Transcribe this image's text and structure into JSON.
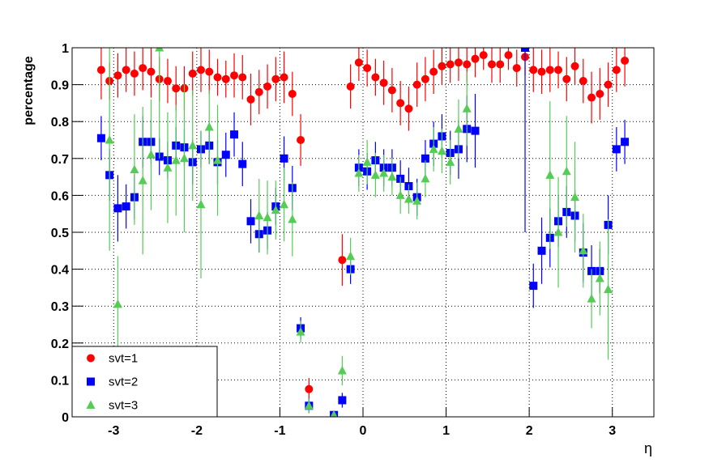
{
  "chart_data": {
    "type": "scatter",
    "x_label": "η",
    "y_label": "percentage",
    "xlim": [
      -3.5,
      3.5
    ],
    "ylim": [
      0,
      1
    ],
    "xticks": [
      -3,
      -2,
      -1,
      0,
      1,
      2,
      3
    ],
    "yticks": [
      0,
      0.1,
      0.2,
      0.3,
      0.4,
      0.5,
      0.6,
      0.7,
      0.8,
      0.9,
      1
    ],
    "grid": true,
    "legend": "lower left",
    "series": [
      {
        "name": "svt=1",
        "color": "#ff0000",
        "marker": "circle",
        "x": [
          -3.15,
          -3.05,
          -2.95,
          -2.85,
          -2.75,
          -2.65,
          -2.55,
          -2.45,
          -2.35,
          -2.25,
          -2.15,
          -2.05,
          -1.95,
          -1.85,
          -1.75,
          -1.65,
          -1.55,
          -1.45,
          -1.35,
          -1.25,
          -1.15,
          -1.05,
          -0.95,
          -0.85,
          -0.75,
          -0.65,
          -0.25,
          -0.15,
          -0.05,
          0.05,
          0.15,
          0.25,
          0.35,
          0.45,
          0.55,
          0.65,
          0.75,
          0.85,
          0.95,
          1.05,
          1.15,
          1.25,
          1.35,
          1.45,
          1.55,
          1.65,
          1.75,
          1.85,
          1.95,
          2.05,
          2.15,
          2.25,
          2.35,
          2.45,
          2.55,
          2.65,
          2.75,
          2.85,
          2.95,
          3.05,
          3.15
        ],
        "values": [
          0.94,
          0.91,
          0.925,
          0.94,
          0.93,
          0.945,
          0.935,
          0.915,
          0.91,
          0.89,
          0.89,
          0.93,
          0.94,
          0.935,
          0.92,
          0.915,
          0.925,
          0.92,
          0.86,
          0.88,
          0.895,
          0.915,
          0.92,
          0.875,
          0.75,
          0.075,
          0.425,
          0.895,
          0.96,
          0.945,
          0.92,
          0.905,
          0.885,
          0.85,
          0.835,
          0.9,
          0.915,
          0.935,
          0.95,
          0.955,
          0.96,
          0.955,
          0.97,
          0.98,
          0.955,
          0.955,
          0.98,
          0.945,
          0.975,
          0.94,
          0.935,
          0.94,
          0.94,
          0.915,
          0.95,
          0.91,
          0.865,
          0.875,
          0.9,
          0.94,
          0.965
        ],
        "errors": [
          0.08,
          0.05,
          0.06,
          0.06,
          0.06,
          0.06,
          0.07,
          0.06,
          0.06,
          0.06,
          0.06,
          0.06,
          0.06,
          0.06,
          0.05,
          0.05,
          0.06,
          0.06,
          0.07,
          0.06,
          0.06,
          0.06,
          0.07,
          0.06,
          0.07,
          0.03,
          0.07,
          0.06,
          0.05,
          0.05,
          0.05,
          0.06,
          0.06,
          0.06,
          0.06,
          0.06,
          0.06,
          0.06,
          0.05,
          0.05,
          0.05,
          0.05,
          0.05,
          0.04,
          0.05,
          0.05,
          0.04,
          0.05,
          0.05,
          0.06,
          0.06,
          0.06,
          0.05,
          0.06,
          0.05,
          0.06,
          0.07,
          0.07,
          0.06,
          0.06,
          0.07
        ]
      },
      {
        "name": "svt=2",
        "color": "#0000ff",
        "marker": "square",
        "x": [
          -3.15,
          -3.05,
          -2.95,
          -2.85,
          -2.75,
          -2.65,
          -2.55,
          -2.45,
          -2.35,
          -2.25,
          -2.15,
          -2.05,
          -1.95,
          -1.85,
          -1.75,
          -1.65,
          -1.55,
          -1.45,
          -1.35,
          -1.25,
          -1.15,
          -1.05,
          -0.95,
          -0.85,
          -0.75,
          -0.65,
          -0.35,
          -0.25,
          -0.15,
          -0.05,
          0.05,
          0.15,
          0.25,
          0.35,
          0.45,
          0.55,
          0.65,
          0.75,
          0.85,
          0.95,
          1.05,
          1.15,
          1.25,
          1.35,
          1.95,
          2.05,
          2.15,
          2.25,
          2.35,
          2.45,
          2.55,
          2.65,
          2.75,
          2.85,
          2.95,
          3.05,
          3.15
        ],
        "values": [
          0.755,
          0.655,
          0.565,
          0.57,
          0.595,
          0.745,
          0.745,
          0.705,
          0.695,
          0.735,
          0.73,
          0.69,
          0.725,
          0.735,
          0.69,
          0.71,
          0.765,
          0.685,
          0.53,
          0.495,
          0.505,
          0.57,
          0.7,
          0.62,
          0.24,
          0.03,
          0.005,
          0.045,
          0.4,
          0.675,
          0.665,
          0.695,
          0.675,
          0.675,
          0.645,
          0.625,
          0.595,
          0.7,
          0.74,
          0.76,
          0.715,
          0.725,
          0.78,
          0.775,
          1.0,
          0.355,
          0.45,
          0.485,
          0.53,
          0.555,
          0.545,
          0.445,
          0.395,
          0.395,
          0.52,
          0.725,
          0.745
        ],
        "errors": [
          0.06,
          0.07,
          0.09,
          0.06,
          0.06,
          0.07,
          0.06,
          0.05,
          0.05,
          0.05,
          0.05,
          0.06,
          0.05,
          0.05,
          0.06,
          0.06,
          0.06,
          0.06,
          0.06,
          0.05,
          0.05,
          0.05,
          0.06,
          0.06,
          0.03,
          0.02,
          0.01,
          0.02,
          0.04,
          0.05,
          0.05,
          0.05,
          0.05,
          0.05,
          0.05,
          0.05,
          0.05,
          0.05,
          0.06,
          0.06,
          0.06,
          0.08,
          0.09,
          0.1,
          0.5,
          0.06,
          0.09,
          0.08,
          0.07,
          0.07,
          0.07,
          0.08,
          0.07,
          0.06,
          0.08,
          0.06,
          0.06
        ]
      },
      {
        "name": "svt=3",
        "color": "#55cc55",
        "marker": "triangle",
        "x": [
          -3.05,
          -2.95,
          -2.75,
          -2.65,
          -2.55,
          -2.45,
          -2.35,
          -2.25,
          -2.15,
          -2.05,
          -1.95,
          -1.85,
          -1.75,
          -1.25,
          -1.15,
          -1.05,
          -0.95,
          -0.85,
          -0.75,
          -0.65,
          -0.35,
          -0.25,
          -0.15,
          -0.05,
          0.05,
          0.15,
          0.25,
          0.35,
          0.45,
          0.55,
          0.65,
          0.75,
          0.85,
          0.95,
          1.05,
          1.15,
          1.25,
          2.25,
          2.35,
          2.45,
          2.55,
          2.65,
          2.75,
          2.85,
          2.95
        ],
        "values": [
          0.75,
          0.305,
          0.67,
          0.64,
          0.71,
          1.0,
          0.675,
          0.695,
          0.7,
          0.735,
          0.575,
          0.785,
          0.695,
          0.545,
          0.54,
          0.56,
          0.575,
          0.535,
          0.23,
          0.03,
          0.005,
          0.125,
          0.435,
          0.66,
          0.69,
          0.655,
          0.66,
          0.65,
          0.6,
          0.59,
          0.585,
          0.645,
          0.725,
          0.72,
          0.69,
          0.78,
          0.835,
          0.655,
          0.5,
          0.665,
          0.595,
          0.45,
          0.32,
          0.375,
          0.345
        ],
        "errors": [
          0.3,
          0.13,
          0.15,
          0.2,
          0.15,
          0.3,
          0.15,
          0.15,
          0.2,
          0.15,
          0.2,
          0.1,
          0.15,
          0.1,
          0.1,
          0.08,
          0.1,
          0.1,
          0.03,
          0.02,
          0.01,
          0.04,
          0.05,
          0.05,
          0.06,
          0.06,
          0.05,
          0.05,
          0.05,
          0.04,
          0.05,
          0.05,
          0.06,
          0.06,
          0.06,
          0.08,
          0.1,
          0.2,
          0.15,
          0.15,
          0.15,
          0.1,
          0.08,
          0.1,
          0.19
        ]
      }
    ]
  }
}
